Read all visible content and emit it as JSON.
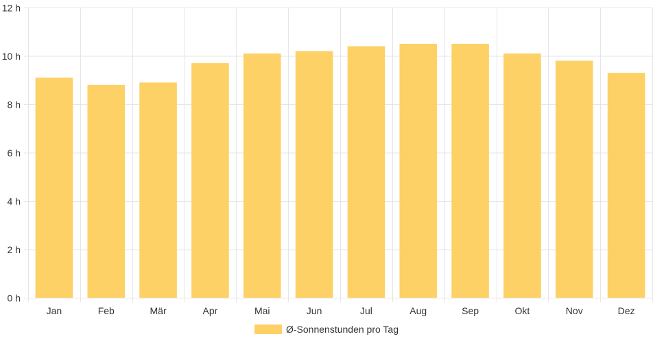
{
  "chart_data": {
    "type": "bar",
    "categories": [
      "Jan",
      "Feb",
      "Mär",
      "Apr",
      "Mai",
      "Jun",
      "Jul",
      "Aug",
      "Sep",
      "Okt",
      "Nov",
      "Dez"
    ],
    "series": [
      {
        "name": "Ø-Sonnenstunden pro Tag",
        "values": [
          9.1,
          8.8,
          8.9,
          9.7,
          10.1,
          10.2,
          10.4,
          10.5,
          10.5,
          10.1,
          9.8,
          9.3
        ],
        "color": "#fdd166"
      }
    ],
    "ylim": [
      0,
      12
    ],
    "yticks": [
      0,
      2,
      4,
      6,
      8,
      10,
      12
    ],
    "y_tick_labels": [
      "0 h",
      "2 h",
      "4 h",
      "6 h",
      "8 h",
      "10 h",
      "12 h"
    ],
    "grid": true,
    "legend_position": "bottom"
  }
}
